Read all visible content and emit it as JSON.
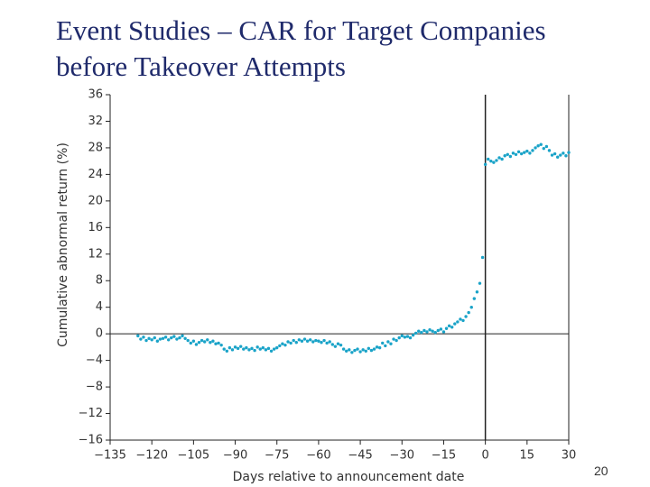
{
  "chart_data": {
    "type": "scatter",
    "title_lines": [
      "Event Studies – CAR for Target Companies",
      "before Takeover Attempts"
    ],
    "x_label": "Days relative to announcement date",
    "y_label": "Cumulative abnormal return (%)",
    "color": "#1aa3c8",
    "xlim": [
      -135,
      30
    ],
    "ylim": [
      -16,
      36
    ],
    "xticks": [
      {
        "value": -135,
        "label": "−135"
      },
      {
        "value": -120,
        "label": "−120"
      },
      {
        "value": -105,
        "label": "−105"
      },
      {
        "value": -90,
        "label": "−90"
      },
      {
        "value": -75,
        "label": "−75"
      },
      {
        "value": -60,
        "label": "−60"
      },
      {
        "value": -45,
        "label": "−45"
      },
      {
        "value": -30,
        "label": "−30"
      },
      {
        "value": -15,
        "label": "−15"
      },
      0,
      15,
      30
    ],
    "yticks": [
      {
        "value": -16,
        "label": "−16"
      },
      {
        "value": -12,
        "label": "−12"
      },
      {
        "value": -8,
        "label": "−8"
      },
      {
        "value": -4,
        "label": "−4"
      },
      0,
      4,
      8,
      12,
      16,
      20,
      24,
      28,
      32,
      36
    ],
    "x": [
      -125,
      -124,
      -123,
      -122,
      -121,
      -120,
      -119,
      -118,
      -117,
      -116,
      -115,
      -114,
      -113,
      -112,
      -111,
      -110,
      -109,
      -108,
      -107,
      -106,
      -105,
      -104,
      -103,
      -102,
      -101,
      -100,
      -99,
      -98,
      -97,
      -96,
      -95,
      -94,
      -93,
      -92,
      -91,
      -90,
      -89,
      -88,
      -87,
      -86,
      -85,
      -84,
      -83,
      -82,
      -81,
      -80,
      -79,
      -78,
      -77,
      -76,
      -75,
      -74,
      -73,
      -72,
      -71,
      -70,
      -69,
      -68,
      -67,
      -66,
      -65,
      -64,
      -63,
      -62,
      -61,
      -60,
      -59,
      -58,
      -57,
      -56,
      -55,
      -54,
      -53,
      -52,
      -51,
      -50,
      -49,
      -48,
      -47,
      -46,
      -45,
      -44,
      -43,
      -42,
      -41,
      -40,
      -39,
      -38,
      -37,
      -36,
      -35,
      -34,
      -33,
      -32,
      -31,
      -30,
      -29,
      -28,
      -27,
      -26,
      -25,
      -24,
      -23,
      -22,
      -21,
      -20,
      -19,
      -18,
      -17,
      -16,
      -15,
      -14,
      -13,
      -12,
      -11,
      -10,
      -9,
      -8,
      -7,
      -6,
      -5,
      -4,
      -3,
      -2,
      -1,
      0,
      1,
      2,
      3,
      4,
      5,
      6,
      7,
      8,
      9,
      10,
      11,
      12,
      13,
      14,
      15,
      16,
      17,
      18,
      19,
      20,
      21,
      22,
      23,
      24,
      25,
      26,
      27,
      28,
      29,
      30
    ],
    "values": [
      -0.3,
      -0.8,
      -0.5,
      -1.0,
      -0.7,
      -0.9,
      -0.6,
      -1.1,
      -0.8,
      -0.7,
      -0.5,
      -0.9,
      -0.6,
      -0.4,
      -0.8,
      -0.6,
      -0.3,
      -0.7,
      -1.0,
      -1.4,
      -1.1,
      -1.6,
      -1.3,
      -1.0,
      -1.2,
      -0.9,
      -1.3,
      -1.1,
      -1.5,
      -1.4,
      -1.7,
      -2.3,
      -2.6,
      -2.1,
      -2.4,
      -2.0,
      -2.2,
      -1.9,
      -2.3,
      -2.1,
      -2.4,
      -2.2,
      -2.5,
      -2.0,
      -2.3,
      -2.1,
      -2.4,
      -2.2,
      -2.6,
      -2.3,
      -2.1,
      -1.8,
      -1.5,
      -1.7,
      -1.2,
      -1.4,
      -1.0,
      -1.3,
      -0.9,
      -1.1,
      -0.8,
      -1.1,
      -0.9,
      -1.2,
      -1.0,
      -1.1,
      -1.3,
      -1.0,
      -1.4,
      -1.2,
      -1.6,
      -1.9,
      -1.5,
      -1.7,
      -2.3,
      -2.6,
      -2.4,
      -2.8,
      -2.5,
      -2.3,
      -2.7,
      -2.4,
      -2.6,
      -2.2,
      -2.5,
      -2.3,
      -2.0,
      -2.1,
      -1.4,
      -1.8,
      -1.2,
      -1.5,
      -0.8,
      -1.0,
      -0.6,
      -0.3,
      -0.5,
      -0.4,
      -0.6,
      -0.2,
      0.1,
      0.4,
      0.2,
      0.5,
      0.3,
      0.6,
      0.4,
      0.2,
      0.5,
      0.7,
      0.3,
      0.8,
      1.2,
      1.0,
      1.5,
      1.8,
      2.2,
      2.0,
      2.6,
      3.2,
      4.0,
      5.3,
      6.3,
      7.6,
      11.5,
      25.5,
      26.3,
      26.0,
      25.8,
      26.1,
      26.5,
      26.3,
      26.8,
      27.0,
      26.7,
      27.2,
      27.0,
      27.4,
      27.1,
      27.3,
      27.5,
      27.2,
      27.6,
      28.0,
      28.3,
      28.5,
      27.9,
      28.2,
      27.6,
      26.9,
      27.1,
      26.6,
      26.9,
      27.2,
      26.8,
      27.3
    ]
  },
  "page_number": "20"
}
